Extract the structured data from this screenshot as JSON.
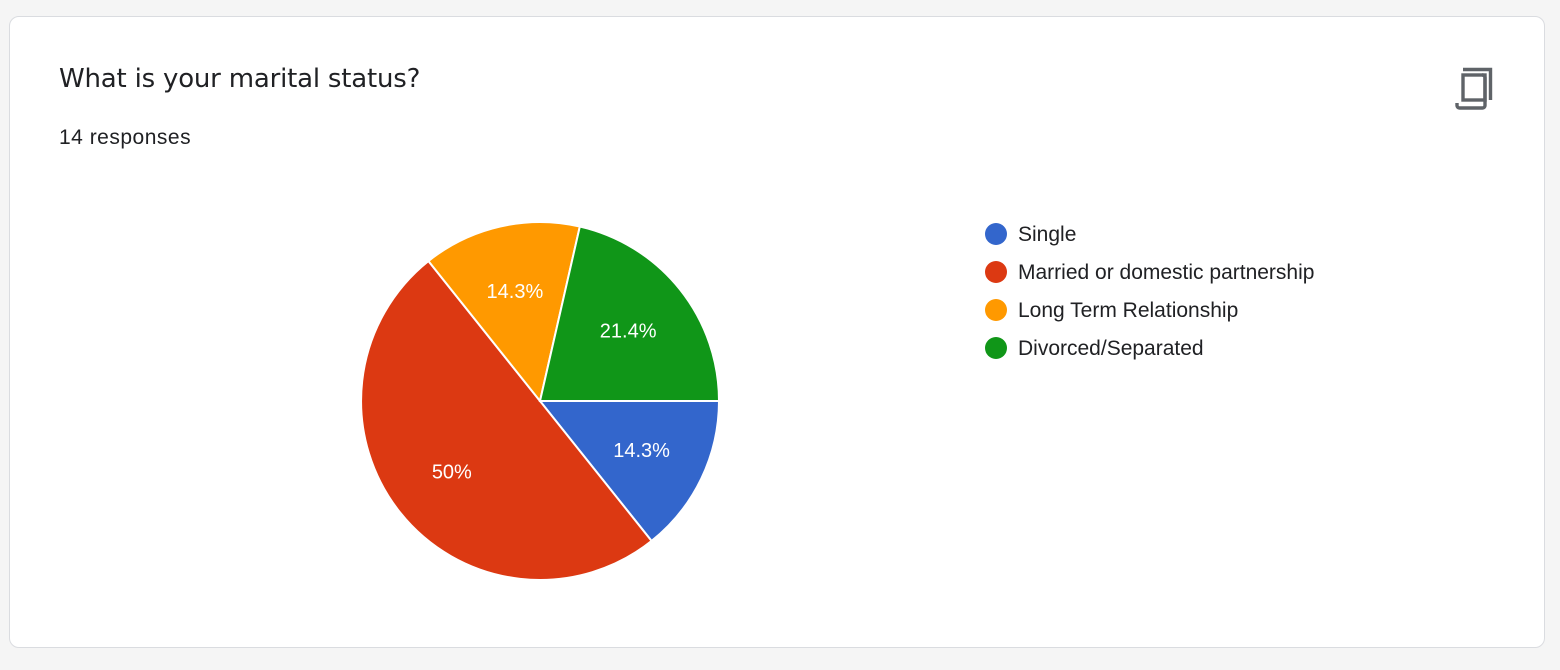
{
  "card": {
    "question": "What is your marital status?",
    "responses": "14 responses",
    "copy_icon": "copy-icon"
  },
  "chart_data": {
    "type": "pie",
    "categories": [
      "Single",
      "Married or domestic partnership",
      "Long Term Relationship",
      "Divorced/Separated"
    ],
    "values": [
      2,
      7,
      2,
      3
    ],
    "labels": [
      "14.3%",
      "50%",
      "14.3%",
      "21.4%"
    ],
    "colors": [
      "#3366cc",
      "#dc3912",
      "#ff9900",
      "#109618"
    ],
    "legend_position": "right"
  }
}
